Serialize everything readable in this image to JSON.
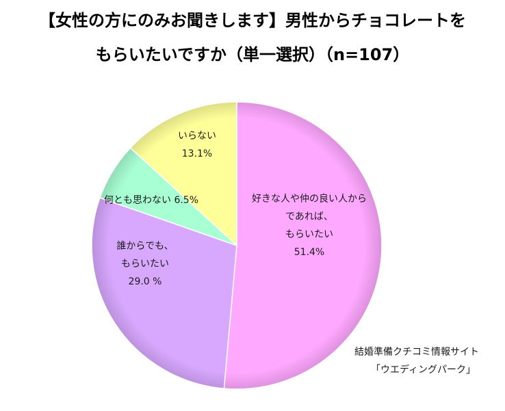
{
  "title_line1": "【女性の方にのみお聞きします】男性からチョコレートを",
  "title_line2": "もらいたいですか（単一選択）（n=107）",
  "source_line1": "結婚準備クチコミ情報サイト",
  "source_line2": "「ウエディングパーク」",
  "chart_data": {
    "type": "pie",
    "title": "【女性の方にのみお聞きします】男性からチョコレートをもらいたいですか（単一選択）（n=107）",
    "start_angle": "12 o'clock",
    "direction": "clockwise",
    "slices": [
      {
        "label_lines": [
          "好きな人や仲の良い人から",
          "であれば、",
          "もらいたい"
        ],
        "value": 51.4,
        "value_label": "51.4%",
        "color": "#ffa8ff"
      },
      {
        "label_lines": [
          "誰からでも、",
          "もらいたい"
        ],
        "value": 29.0,
        "value_label": "29.0 %",
        "color": "#d8a8ff"
      },
      {
        "label_lines": [
          "何とも思わない"
        ],
        "value": 6.5,
        "value_label": "6.5%",
        "color": "#a8ffd4"
      },
      {
        "label_lines": [
          "いらない"
        ],
        "value": 13.1,
        "value_label": "13.1%",
        "color": "#ffff99"
      }
    ]
  }
}
